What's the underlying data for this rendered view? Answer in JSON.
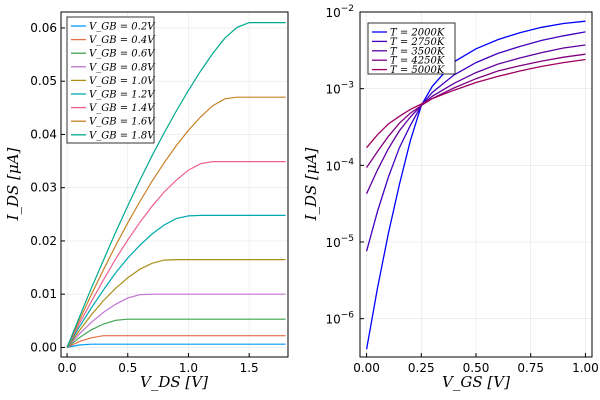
{
  "chart_data": [
    {
      "type": "line",
      "title": "",
      "xlabel": "V_DS [V]",
      "ylabel": "I_DS [μA]",
      "xlim": [
        -0.05,
        1.82
      ],
      "ylim": [
        -0.0018,
        0.063
      ],
      "xticks": [
        0.0,
        0.5,
        1.0,
        1.5
      ],
      "xtick_labels": [
        "0.0",
        "0.5",
        "1.0",
        "1.5"
      ],
      "yticks": [
        0.0,
        0.01,
        0.02,
        0.03,
        0.04,
        0.05,
        0.06
      ],
      "ytick_labels": [
        "0.00",
        "0.01",
        "0.02",
        "0.03",
        "0.04",
        "0.05",
        "0.06"
      ],
      "grid": true,
      "legend_position": "top-left",
      "x": [
        0.0,
        0.1,
        0.2,
        0.3,
        0.4,
        0.5,
        0.6,
        0.7,
        0.8,
        0.9,
        1.0,
        1.1,
        1.2,
        1.3,
        1.4,
        1.5,
        1.6,
        1.7,
        1.8
      ],
      "series": [
        {
          "name": "V_GB = 0.2V",
          "color": "#009AFA",
          "values": [
            0.0,
            0.00045,
            0.0006,
            0.0006,
            0.0006,
            0.0006,
            0.0006,
            0.0006,
            0.0006,
            0.0006,
            0.0006,
            0.0006,
            0.0006,
            0.0006,
            0.0006,
            0.0006,
            0.0006,
            0.0006,
            0.0006
          ]
        },
        {
          "name": "V_GB = 0.4V",
          "color": "#E36F47",
          "values": [
            0.0,
            0.0011,
            0.0018,
            0.0022,
            0.0022,
            0.0022,
            0.0022,
            0.0022,
            0.0022,
            0.0022,
            0.0022,
            0.0022,
            0.0022,
            0.0022,
            0.0022,
            0.0022,
            0.0022,
            0.0022,
            0.0022
          ]
        },
        {
          "name": "V_GB = 0.6V",
          "color": "#3EA44E",
          "values": [
            0.0,
            0.0018,
            0.0033,
            0.0044,
            0.0051,
            0.0053,
            0.0053,
            0.0053,
            0.0053,
            0.0053,
            0.0053,
            0.0053,
            0.0053,
            0.0053,
            0.0053,
            0.0053,
            0.0053,
            0.0053,
            0.0053
          ]
        },
        {
          "name": "V_GB = 0.8V",
          "color": "#C271D2",
          "values": [
            0.0,
            0.0025,
            0.0047,
            0.0066,
            0.0081,
            0.0093,
            0.0099,
            0.01,
            0.01,
            0.01,
            0.01,
            0.01,
            0.01,
            0.01,
            0.01,
            0.01,
            0.01,
            0.01,
            0.01
          ]
        },
        {
          "name": "V_GB = 1.0V",
          "color": "#AC8E18",
          "values": [
            0.0,
            0.0031,
            0.0061,
            0.0088,
            0.0111,
            0.0131,
            0.0147,
            0.0158,
            0.0164,
            0.0165,
            0.0165,
            0.0165,
            0.0165,
            0.0165,
            0.0165,
            0.0165,
            0.0165,
            0.0165,
            0.0165
          ]
        },
        {
          "name": "V_GB = 1.2V",
          "color": "#00A9AD",
          "values": [
            0.0,
            0.0038,
            0.0074,
            0.0108,
            0.014,
            0.0168,
            0.0192,
            0.0213,
            0.023,
            0.0242,
            0.0247,
            0.0248,
            0.0248,
            0.0248,
            0.0248,
            0.0248,
            0.0248,
            0.0248,
            0.0248
          ]
        },
        {
          "name": "V_GB = 1.4V",
          "color": "#ED5E93",
          "values": [
            0.0,
            0.0044,
            0.0086,
            0.0127,
            0.0166,
            0.0202,
            0.0235,
            0.0265,
            0.0292,
            0.0314,
            0.0333,
            0.0345,
            0.0349,
            0.0349,
            0.0349,
            0.0349,
            0.0349,
            0.0349,
            0.0349
          ]
        },
        {
          "name": "V_GB = 1.6V",
          "color": "#C68225",
          "values": [
            0.0,
            0.005,
            0.0099,
            0.0146,
            0.0191,
            0.0234,
            0.0274,
            0.0312,
            0.0347,
            0.0379,
            0.0408,
            0.0433,
            0.0454,
            0.0467,
            0.047,
            0.047,
            0.047,
            0.047,
            0.047
          ]
        },
        {
          "name": "V_GB = 1.8V",
          "color": "#00A98D",
          "values": [
            0.0,
            0.0056,
            0.0111,
            0.0164,
            0.0216,
            0.0266,
            0.0314,
            0.036,
            0.0403,
            0.0444,
            0.0483,
            0.0519,
            0.0552,
            0.0581,
            0.0601,
            0.061,
            0.061,
            0.061,
            0.061
          ]
        }
      ]
    },
    {
      "type": "line",
      "title": "",
      "xlabel": "V_GS [V]",
      "ylabel": "I_DS [μA]",
      "yscale": "log",
      "xlim": [
        -0.03,
        1.03
      ],
      "ylim_log10": [
        -6.5,
        -2.0
      ],
      "xticks": [
        0.0,
        0.25,
        0.5,
        0.75,
        1.0
      ],
      "xtick_labels": [
        "0.00",
        "0.25",
        "0.50",
        "0.75",
        "1.00"
      ],
      "ytick_exponents": [
        -6,
        -5,
        -4,
        -3,
        -2
      ],
      "ytick_base": "10",
      "grid": true,
      "legend_position": "top-left",
      "x": [
        0.0,
        0.05,
        0.1,
        0.15,
        0.2,
        0.25,
        0.3,
        0.4,
        0.5,
        0.6,
        0.7,
        0.8,
        0.9,
        1.0
      ],
      "series": [
        {
          "name": "T = 2000K",
          "color": "#0000FF",
          "log10_values": [
            -6.4,
            -5.6,
            -4.88,
            -4.25,
            -3.68,
            -3.22,
            -2.97,
            -2.65,
            -2.48,
            -2.36,
            -2.27,
            -2.2,
            -2.15,
            -2.12
          ]
        },
        {
          "name": "T = 2750K",
          "color": "#3F00BF",
          "log10_values": [
            -5.12,
            -4.6,
            -4.15,
            -3.77,
            -3.48,
            -3.22,
            -3.05,
            -2.82,
            -2.66,
            -2.54,
            -2.45,
            -2.37,
            -2.31,
            -2.26
          ]
        },
        {
          "name": "T = 3500K",
          "color": "#5F009F",
          "log10_values": [
            -4.37,
            -4.06,
            -3.78,
            -3.55,
            -3.37,
            -3.22,
            -3.1,
            -2.93,
            -2.79,
            -2.68,
            -2.6,
            -2.53,
            -2.47,
            -2.43
          ]
        },
        {
          "name": "T = 4250K",
          "color": "#7F007F",
          "log10_values": [
            -4.03,
            -3.82,
            -3.62,
            -3.45,
            -3.32,
            -3.22,
            -3.13,
            -2.99,
            -2.87,
            -2.77,
            -2.7,
            -2.64,
            -2.59,
            -2.55
          ]
        },
        {
          "name": "T = 5000K",
          "color": "#9F005F",
          "log10_values": [
            -3.77,
            -3.6,
            -3.46,
            -3.36,
            -3.27,
            -3.2,
            -3.13,
            -3.02,
            -2.92,
            -2.84,
            -2.77,
            -2.71,
            -2.66,
            -2.62
          ]
        }
      ]
    }
  ]
}
